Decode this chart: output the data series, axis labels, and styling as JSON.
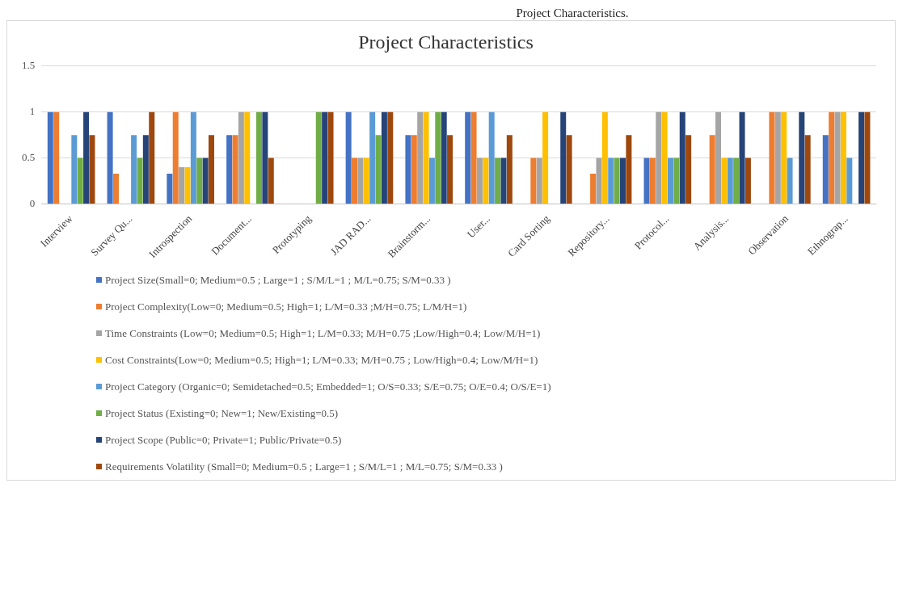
{
  "chart_data": {
    "type": "bar",
    "title": "Project Characteristics",
    "annotations": [
      "Project Characteristics."
    ],
    "categories": [
      "Interview",
      "Survey Qu...",
      "Introspection",
      "Document...",
      "Prototyping",
      "JAD RAD...",
      "Brainstorm...",
      "User...",
      "Card Sorting",
      "Repository...",
      "Protocol...",
      "Analysis...",
      "Observation",
      "Ethnograp..."
    ],
    "series": [
      {
        "name": "Project Size(Small=0; Medium=0.5 ; Large=1 ; S/M/L=1 ; M/L=0.75; S/M=0.33 )",
        "color": "#4472c4",
        "values": [
          1,
          1,
          0.33,
          0.75,
          0,
          1,
          0.75,
          1,
          0,
          0,
          0.5,
          0,
          0,
          0.75
        ]
      },
      {
        "name": "Project Complexity(Low=0; Medium=0.5; High=1; L/M=0.33 ;M/H=0.75; L/M/H=1)",
        "color": "#ed7d31",
        "values": [
          1,
          0.33,
          1,
          0.75,
          0,
          0.5,
          0.75,
          1,
          0.5,
          0.33,
          0.5,
          0.75,
          1,
          1
        ]
      },
      {
        "name": "Time Constraints (Low=0; Medium=0.5; High=1; L/M=0.33; M/H=0.75 ;Low/High=0.4; Low/M/H=1)",
        "color": "#a5a5a5",
        "values": [
          0,
          0,
          0.4,
          1,
          0,
          0.5,
          1,
          0.5,
          0.5,
          0.5,
          1,
          1,
          1,
          1
        ]
      },
      {
        "name": "Cost Constraints(Low=0; Medium=0.5; High=1; L/M=0.33; M/H=0.75 ; Low/High=0.4; Low/M/H=1)",
        "color": "#ffc000",
        "values": [
          0,
          0,
          0.4,
          1,
          0,
          0.5,
          1,
          0.5,
          1,
          1,
          1,
          0.5,
          1,
          1
        ]
      },
      {
        "name": "Project Category (Organic=0; Semidetached=0.5; Embedded=1; O/S=0.33; S/E=0.75; O/E=0.4; O/S/E=1)",
        "color": "#5b9bd5",
        "values": [
          0.75,
          0.75,
          1,
          0,
          0,
          1,
          0.5,
          1,
          0,
          0.5,
          0.5,
          0.5,
          0.5,
          0.5
        ]
      },
      {
        "name": "Project Status (Existing=0; New=1; New/Existing=0.5)",
        "color": "#70ad47",
        "values": [
          0.5,
          0.5,
          0.5,
          1,
          1,
          0.75,
          1,
          0.5,
          0,
          0.5,
          0.5,
          0.5,
          0,
          0
        ]
      },
      {
        "name": "Project Scope (Public=0; Private=1; Public/Private=0.5)",
        "color": "#264478",
        "values": [
          1,
          0.75,
          0.5,
          1,
          1,
          1,
          1,
          0.5,
          1,
          0.5,
          1,
          1,
          1,
          1
        ]
      },
      {
        "name": "Requirements Volatility (Small=0; Medium=0.5 ; Large=1 ; S/M/L=1 ; M/L=0.75; S/M=0.33 )",
        "color": "#9e480e",
        "values": [
          0.75,
          1,
          0.75,
          0.5,
          1,
          1,
          0.75,
          0.75,
          0.75,
          0.75,
          0.75,
          0.5,
          0.75,
          1
        ]
      }
    ],
    "ylim": [
      0,
      1.5
    ],
    "yticks": [
      0,
      0.5,
      1,
      1.5
    ],
    "grid": "y",
    "legend": "bottom"
  }
}
